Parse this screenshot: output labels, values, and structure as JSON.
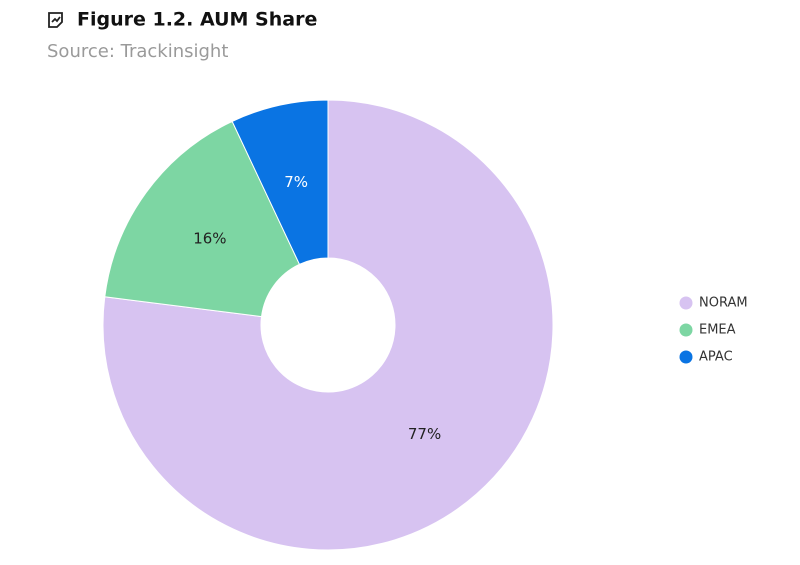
{
  "chart_data": {
    "type": "pie",
    "title": "Figure 1.2. AUM Share",
    "subtitle": "Source: Trackinsight",
    "categories": [
      "NORAM",
      "EMEA",
      "APAC"
    ],
    "values": [
      77,
      16,
      7
    ],
    "value_labels": [
      "77%",
      "16%",
      "7%"
    ],
    "colors": [
      "#d7c3f1",
      "#7dd6a3",
      "#0a74e3"
    ],
    "donut": true,
    "legend": "right"
  }
}
